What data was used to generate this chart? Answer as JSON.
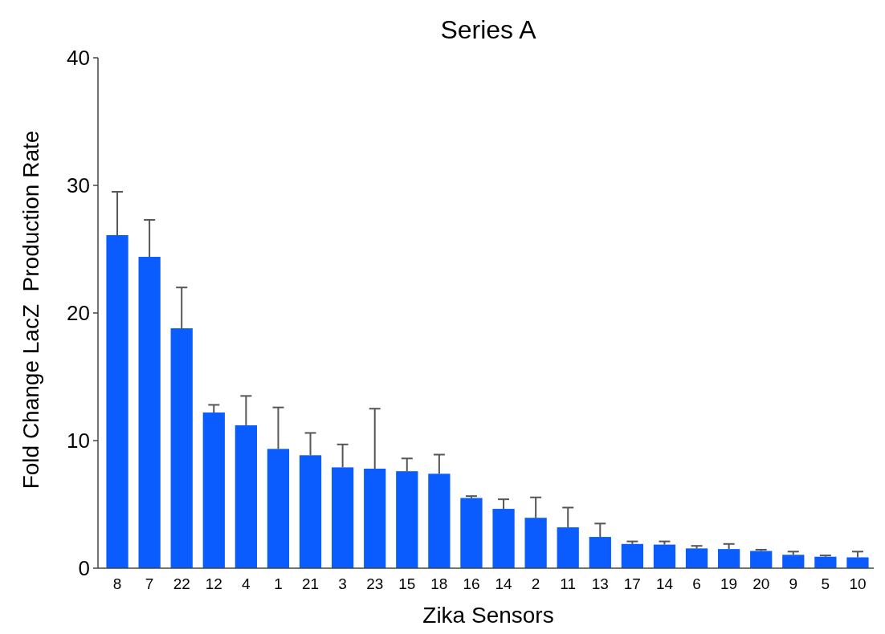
{
  "chart_data": {
    "type": "bar",
    "title": "Series A",
    "xlabel": "Zika Sensors",
    "ylabel": "Fold Change LacZ  Production Rate",
    "categories": [
      "8",
      "7",
      "22",
      "12",
      "4",
      "1",
      "21",
      "3",
      "23",
      "15",
      "18",
      "16",
      "14",
      "2",
      "11",
      "13",
      "17",
      "14",
      "6",
      "19",
      "20",
      "9",
      "5",
      "10"
    ],
    "values": [
      26.1,
      24.4,
      18.8,
      12.2,
      11.2,
      9.35,
      8.85,
      7.9,
      7.8,
      7.6,
      7.4,
      5.5,
      4.65,
      3.95,
      3.2,
      2.45,
      1.9,
      1.85,
      1.55,
      1.5,
      1.35,
      1.05,
      0.9,
      0.85
    ],
    "errors": [
      [
        26.1,
        29.5
      ],
      [
        24.4,
        27.3
      ],
      [
        18.8,
        22.0
      ],
      [
        12.2,
        12.8
      ],
      [
        11.2,
        13.5
      ],
      [
        9.35,
        12.6
      ],
      [
        8.85,
        10.6
      ],
      [
        7.9,
        9.7
      ],
      [
        7.8,
        12.5
      ],
      [
        7.6,
        8.6
      ],
      [
        7.4,
        8.9
      ],
      [
        5.5,
        5.65
      ],
      [
        4.65,
        5.4
      ],
      [
        3.95,
        5.55
      ],
      [
        3.2,
        4.75
      ],
      [
        2.45,
        3.5
      ],
      [
        1.9,
        2.1
      ],
      [
        1.85,
        2.1
      ],
      [
        1.55,
        1.75
      ],
      [
        1.5,
        1.9
      ],
      [
        1.35,
        1.45
      ],
      [
        1.05,
        1.3
      ],
      [
        0.9,
        1.0
      ],
      [
        0.85,
        1.3
      ]
    ],
    "color": "#0a5cff",
    "ylim": [
      0,
      40
    ],
    "yticks": [
      0,
      10,
      20,
      30,
      40
    ]
  }
}
